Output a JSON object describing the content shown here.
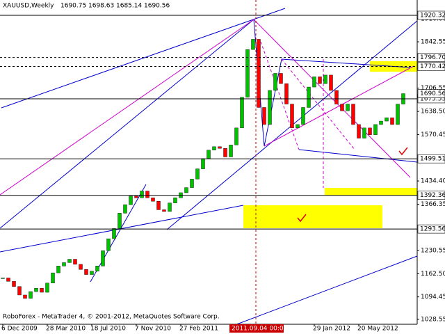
{
  "chart_data": {
    "type": "candlestick",
    "symbol": "XAUUSD,Weekly",
    "ohlc": [
      1690.75,
      1698.63,
      1685.14,
      1690.56
    ],
    "footer": "RoboForex - MetaTrader 4, © 2001-2012, MetaQuotes Software Corp.",
    "cursor_label": "2011.09.04 00:00",
    "up_color": "#00c000",
    "down_color": "#ff0000",
    "categories": [
      "6 Dec 2009",
      null,
      null,
      null,
      null,
      null,
      null,
      null,
      "28 Mar 2010",
      null,
      null,
      null,
      null,
      null,
      null,
      null,
      "18 Jul 2010",
      null,
      null,
      null,
      null,
      null,
      null,
      null,
      "7 Nov 2010",
      null,
      null,
      null,
      null,
      null,
      null,
      null,
      "27 Feb 2011",
      null,
      null,
      null,
      null,
      null,
      null,
      null,
      null,
      null,
      null,
      null,
      null,
      null,
      null,
      null,
      null,
      null,
      null,
      null,
      null,
      null,
      null,
      null,
      "29 Jan 2012",
      null,
      null,
      null,
      null,
      null,
      null,
      null,
      "20 May 2012",
      null,
      null,
      null,
      null,
      null,
      null,
      null,
      null
    ],
    "close": [
      1150,
      1140,
      1125,
      1100,
      1090,
      1110,
      1120,
      1108,
      1135,
      1165,
      1185,
      1195,
      1205,
      1190,
      1175,
      1160,
      1170,
      1185,
      1230,
      1265,
      1295,
      1340,
      1365,
      1390,
      1385,
      1405,
      1385,
      1375,
      1350,
      1345,
      1370,
      1385,
      1400,
      1415,
      1440,
      1470,
      1500,
      1525,
      1535,
      1530,
      1505,
      1540,
      1590,
      1680,
      1820,
      1850,
      1650,
      1600,
      1700,
      1750,
      1720,
      1660,
      1590,
      1600,
      1650,
      1710,
      1740,
      1720,
      1745,
      1700,
      1660,
      1640,
      1660,
      1600,
      1560,
      1590,
      1570,
      1600,
      1610,
      1620,
      1600,
      1660,
      1690.56
    ],
    "ylim": [
      1014.2,
      1965.2
    ],
    "yticks": [
      {
        "value": 1910,
        "label": "1910.00"
      },
      1842.55,
      1706.55,
      {
        "value": 1638.5,
        "label": "1638.50"
      },
      1570.45,
      {
        "value": 1434.4,
        "label": "1434.40"
      },
      1366.35,
      1230.55,
      {
        "value": 1162.5,
        "label": "1162.50"
      },
      1094.45,
      1028.55
    ],
    "solid_levels": [
      1920.32,
      1675.53,
      1499.51,
      1392.36,
      1293.56
    ],
    "dashed_levels": [
      {
        "value": 1796.7,
        "label": "1796.70"
      },
      1770.42
    ],
    "bid": 1690.56
  }
}
